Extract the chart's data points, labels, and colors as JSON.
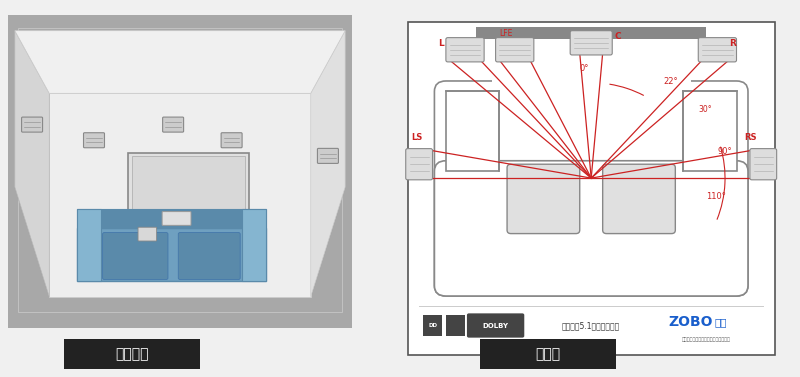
{
  "bg_color": "#f0f0f0",
  "left_bg": "#a8a8a8",
  "left_label": "三维展示",
  "right_label": "俯视图",
  "label_bg": "#222222",
  "label_color": "#ffffff",
  "room": {
    "floor_color": "#b5b5b5",
    "back_wall_color": "#eeeeee",
    "left_wall_color": "#d8d8d8",
    "right_wall_color": "#e2e2e2",
    "ceiling_color": "#f5f5f5",
    "tv_color": "#cccccc",
    "tv_inner": "#e8e8e8",
    "sofa_main": "#6fa0c0",
    "sofa_dark": "#5a8aaa",
    "sofa_light": "#85b5d0",
    "speaker_color": "#cccccc",
    "speaker_edge": "#888888"
  },
  "diagram": {
    "border": "#666666",
    "sofa_color": "#dddddd",
    "sofa_edge": "#888888",
    "seat_color": "#cccccc",
    "seat_edge": "#888888",
    "line_color": "#cc2222",
    "line_width": 0.9,
    "spk_color": "#dddddd",
    "spk_edge": "#888888",
    "dolby_text": "杜比建议5.1声道音箱摆位",
    "brand_color": "#1a5fcc",
    "brand_text": "ZOBO",
    "brand_sub": "卓邦",
    "brand_small": "全国领先的专业音视频系统集成服务商"
  }
}
